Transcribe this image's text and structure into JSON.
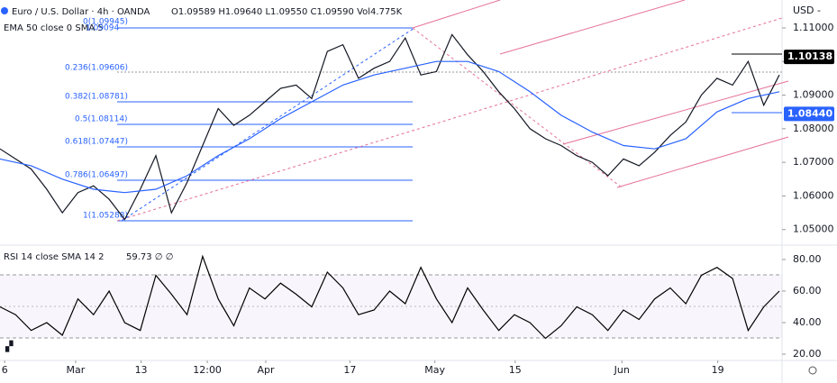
{
  "header": {
    "title": "Euro / U.S. Dollar · 4h · OANDA",
    "ohlc": "O1.09589 H1.09640 L1.09550 C1.09590 Vol4.775K",
    "rsi_values": "59.73 ∅ ∅"
  },
  "annotations": [
    "0(1.09945)",
    "1.09094",
    "0.236(1.09606)",
    "0.382(1.08781)",
    "0.5(1.08114)",
    "0.618(1.07447)",
    "0.786(1.06497)",
    "1(1.05288)"
  ],
  "chart_data": [
    {
      "type": "line",
      "y_unit": "USD -",
      "xlim": [
        0,
        100
      ],
      "xticks": [
        {
          "value": 0.6,
          "label": "6"
        },
        {
          "value": 9.7,
          "label": "Mar"
        },
        {
          "value": 18.1,
          "label": "13"
        },
        {
          "value": 26.6,
          "label": "12:00"
        },
        {
          "value": 34.1,
          "label": "Apr"
        },
        {
          "value": 44.9,
          "label": "17"
        },
        {
          "value": 55.8,
          "label": "May"
        },
        {
          "value": 66.1,
          "label": "15"
        },
        {
          "value": 79.8,
          "label": "Jun"
        },
        {
          "value": 92.1,
          "label": "19"
        }
      ],
      "ylim": [
        1.0459,
        1.1183
      ],
      "yticks": [
        {
          "value": 1.11,
          "label": "1.11000"
        },
        {
          "value": 1.1,
          "label": "1.10000"
        },
        {
          "value": 1.09,
          "label": "1.09000"
        },
        {
          "value": 1.08,
          "label": "1.08000"
        },
        {
          "value": 1.07,
          "label": "1.07000"
        },
        {
          "value": 1.06,
          "label": "1.06000"
        },
        {
          "value": 1.05,
          "label": "1.05000"
        }
      ],
      "price_labels": [
        {
          "value": 1.10138,
          "label": "1.10138",
          "color": "#000000"
        },
        {
          "value": 1.0844,
          "label": "1.08440",
          "color": "#2962ff"
        }
      ],
      "series": [
        {
          "color": "#131722",
          "x": [
            0,
            2,
            4,
            6,
            8,
            10,
            12,
            14,
            16,
            18,
            20,
            22,
            24,
            26,
            28,
            30,
            32,
            34,
            36,
            38,
            40,
            42,
            44,
            46,
            48,
            50,
            52,
            54,
            56,
            58,
            60,
            62,
            64,
            66,
            68,
            70,
            72,
            74,
            76,
            78,
            80,
            82,
            84,
            86,
            88,
            90,
            92,
            94,
            96,
            98,
            100
          ],
          "values": [
            1.074,
            1.071,
            1.068,
            1.062,
            1.055,
            1.061,
            1.063,
            1.059,
            1.053,
            1.062,
            1.072,
            1.055,
            1.064,
            1.075,
            1.086,
            1.081,
            1.084,
            1.088,
            1.092,
            1.093,
            1.089,
            1.103,
            1.105,
            1.095,
            1.098,
            1.1,
            1.107,
            1.096,
            1.097,
            1.108,
            1.102,
            1.097,
            1.091,
            1.086,
            1.08,
            1.077,
            1.075,
            1.072,
            1.07,
            1.066,
            1.071,
            1.069,
            1.073,
            1.078,
            1.082,
            1.09,
            1.095,
            1.093,
            1.1,
            1.087,
            1.096
          ]
        },
        {
          "name": "EMA 50 close 0 SMA 5",
          "color": "#2962ff",
          "x": [
            0,
            4,
            8,
            12,
            16,
            20,
            24,
            28,
            32,
            36,
            40,
            44,
            48,
            52,
            56,
            60,
            64,
            68,
            72,
            76,
            80,
            84,
            88,
            92,
            96,
            100
          ],
          "values": [
            1.071,
            1.069,
            1.065,
            1.062,
            1.061,
            1.062,
            1.066,
            1.072,
            1.077,
            1.083,
            1.088,
            1.093,
            1.096,
            1.098,
            1.1,
            1.1,
            1.097,
            1.091,
            1.084,
            1.079,
            1.075,
            1.074,
            1.077,
            1.085,
            1.089,
            1.091
          ]
        }
      ]
    },
    {
      "type": "line",
      "xlim": [
        0,
        100
      ],
      "ylim": [
        16,
        85.7
      ],
      "yticks": [
        {
          "value": 80,
          "label": "80.00"
        },
        {
          "value": 60,
          "label": "60.00"
        },
        {
          "value": 40,
          "label": "40.00"
        },
        {
          "value": 20,
          "label": "20.00"
        }
      ],
      "series": [
        {
          "name": "RSI 14 close SMA 14 2",
          "color": "#000000",
          "x": [
            0,
            2,
            4,
            6,
            8,
            10,
            12,
            14,
            16,
            18,
            20,
            22,
            24,
            26,
            28,
            30,
            32,
            34,
            36,
            38,
            40,
            42,
            44,
            46,
            48,
            50,
            52,
            54,
            56,
            58,
            60,
            62,
            64,
            66,
            68,
            70,
            72,
            74,
            76,
            78,
            80,
            82,
            84,
            86,
            88,
            90,
            92,
            94,
            96,
            98,
            100
          ],
          "values": [
            50,
            45,
            35,
            40,
            32,
            55,
            45,
            60,
            40,
            35,
            70,
            58,
            45,
            82,
            55,
            38,
            62,
            55,
            65,
            58,
            50,
            72,
            62,
            45,
            48,
            60,
            52,
            75,
            55,
            40,
            62,
            48,
            35,
            45,
            40,
            30,
            38,
            50,
            45,
            35,
            48,
            42,
            55,
            62,
            52,
            70,
            75,
            68,
            35,
            50,
            60
          ]
        }
      ]
    }
  ]
}
